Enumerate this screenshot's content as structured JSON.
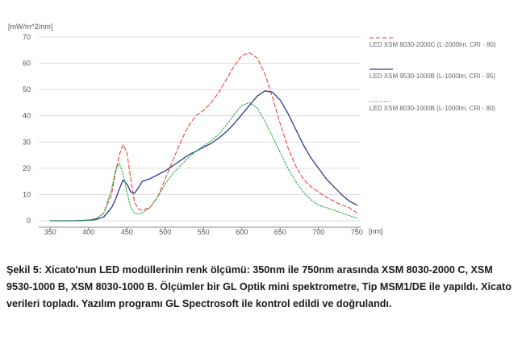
{
  "chart_data": {
    "type": "line",
    "ylabel": "[mW/m^2/nm]",
    "xlabel": "[nm]",
    "xlim": [
      335,
      755
    ],
    "ylim": [
      0,
      70
    ],
    "xticks": [
      350,
      400,
      450,
      500,
      550,
      600,
      650,
      700,
      750
    ],
    "yticks": [
      0,
      10,
      20,
      30,
      40,
      50,
      60,
      70
    ],
    "grid": true,
    "legend_position": "right",
    "series": [
      {
        "name": "LED XSM 8030-2000C (L-2000lm, CRI - 80)",
        "color": "#e8453c",
        "style": "dashed",
        "x": [
          350,
          380,
          400,
          410,
          420,
          430,
          435,
          440,
          445,
          450,
          455,
          460,
          465,
          470,
          480,
          490,
          500,
          510,
          520,
          530,
          540,
          550,
          560,
          570,
          580,
          590,
          600,
          610,
          620,
          630,
          640,
          650,
          660,
          670,
          680,
          690,
          700,
          710,
          720,
          730,
          740,
          750
        ],
        "y": [
          0,
          0,
          0.2,
          0.8,
          3,
          10,
          18,
          25,
          29,
          26,
          16,
          7,
          4.5,
          4,
          5,
          9,
          16,
          23,
          30,
          36,
          40,
          42,
          45,
          49,
          54,
          59,
          63,
          64,
          62,
          56,
          47,
          37,
          28,
          21,
          16,
          13,
          11,
          9,
          7.5,
          6,
          5,
          3
        ]
      },
      {
        "name": "LED XSM 9530-1000B (L-1000lm, CRI - 95)",
        "color": "#2e3a8c",
        "style": "solid",
        "x": [
          350,
          380,
          400,
          410,
          420,
          430,
          435,
          440,
          445,
          450,
          455,
          460,
          465,
          470,
          480,
          490,
          500,
          510,
          520,
          530,
          540,
          550,
          560,
          570,
          580,
          590,
          600,
          610,
          620,
          630,
          640,
          650,
          660,
          670,
          680,
          690,
          700,
          710,
          720,
          730,
          740,
          750
        ],
        "y": [
          0,
          0,
          0.2,
          0.5,
          1.5,
          5,
          8,
          12,
          15.5,
          14,
          11,
          10.5,
          12.5,
          15,
          16,
          17.5,
          19,
          21,
          23,
          25,
          26.5,
          28,
          29.5,
          31.5,
          34,
          37,
          40.5,
          44,
          47.5,
          49.5,
          49,
          46,
          41,
          35,
          29,
          24,
          20,
          16,
          13,
          10,
          7.5,
          6
        ]
      },
      {
        "name": "LED XSM 8030-1000B (L-1000lm, CRI - 80)",
        "color": "#2aa84a",
        "style": "dotted",
        "x": [
          350,
          380,
          400,
          410,
          420,
          430,
          435,
          440,
          445,
          450,
          455,
          460,
          465,
          470,
          480,
          490,
          500,
          510,
          520,
          530,
          540,
          550,
          560,
          570,
          580,
          590,
          600,
          610,
          620,
          630,
          640,
          650,
          660,
          670,
          680,
          690,
          700,
          710,
          720,
          730,
          740,
          750
        ],
        "y": [
          0,
          0,
          0.2,
          0.8,
          3,
          12,
          19,
          22,
          18,
          11,
          5,
          3,
          2.5,
          3,
          5,
          9,
          14,
          18,
          21,
          24,
          26.5,
          28.5,
          30.5,
          33,
          36.5,
          40.5,
          44,
          45,
          43,
          38,
          32,
          26,
          20,
          15,
          11,
          8,
          6,
          5,
          4,
          3,
          2,
          1
        ]
      }
    ]
  },
  "caption": "Şekil 5: Xicato'nun LED modüllerinin renk ölçümü: 350nm ile 750nm arasında XSM 8030-2000 C, XSM 9530-1000 B, XSM 8030-1000 B. Ölçümler bir GL Optik mini spektrometre, Tip MSM1/DE ile yapıldı. Xicato verileri topladı. Yazılım programı GL Spectrosoft ile kontrol edildi ve doğrulandı."
}
